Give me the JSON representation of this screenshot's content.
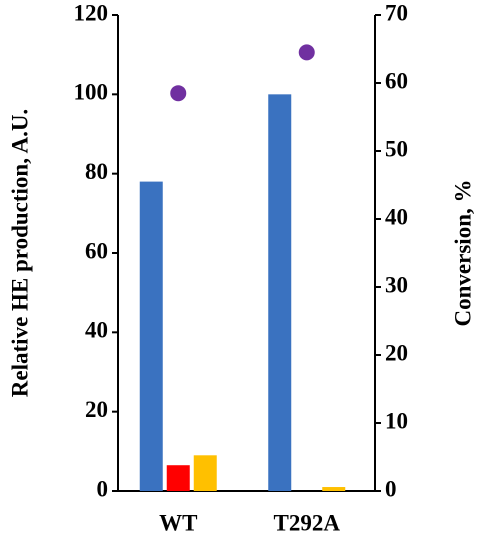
{
  "chart_data": {
    "type": "bar",
    "y_label": "Relative HE production, A.U.",
    "y2_label": "Conversion, %",
    "categories": [
      "WT",
      "T292A"
    ],
    "series": [
      {
        "color": "#3a72c0",
        "values": [
          78,
          100
        ]
      },
      {
        "color": "#ff0000",
        "values": [
          6.5,
          0
        ]
      },
      {
        "color": "#ffc000",
        "values": [
          9,
          1
        ]
      },
      {
        "color": "#7030a0",
        "type": "scatter",
        "axis": "y2",
        "values": [
          58.5,
          64.5
        ]
      }
    ],
    "ylim": [
      0,
      120
    ],
    "yticks": [
      0,
      20,
      40,
      60,
      80,
      100,
      120
    ],
    "y2lim": [
      0,
      70
    ],
    "y2ticks": [
      0,
      10,
      20,
      30,
      40,
      50,
      60,
      70
    ]
  }
}
